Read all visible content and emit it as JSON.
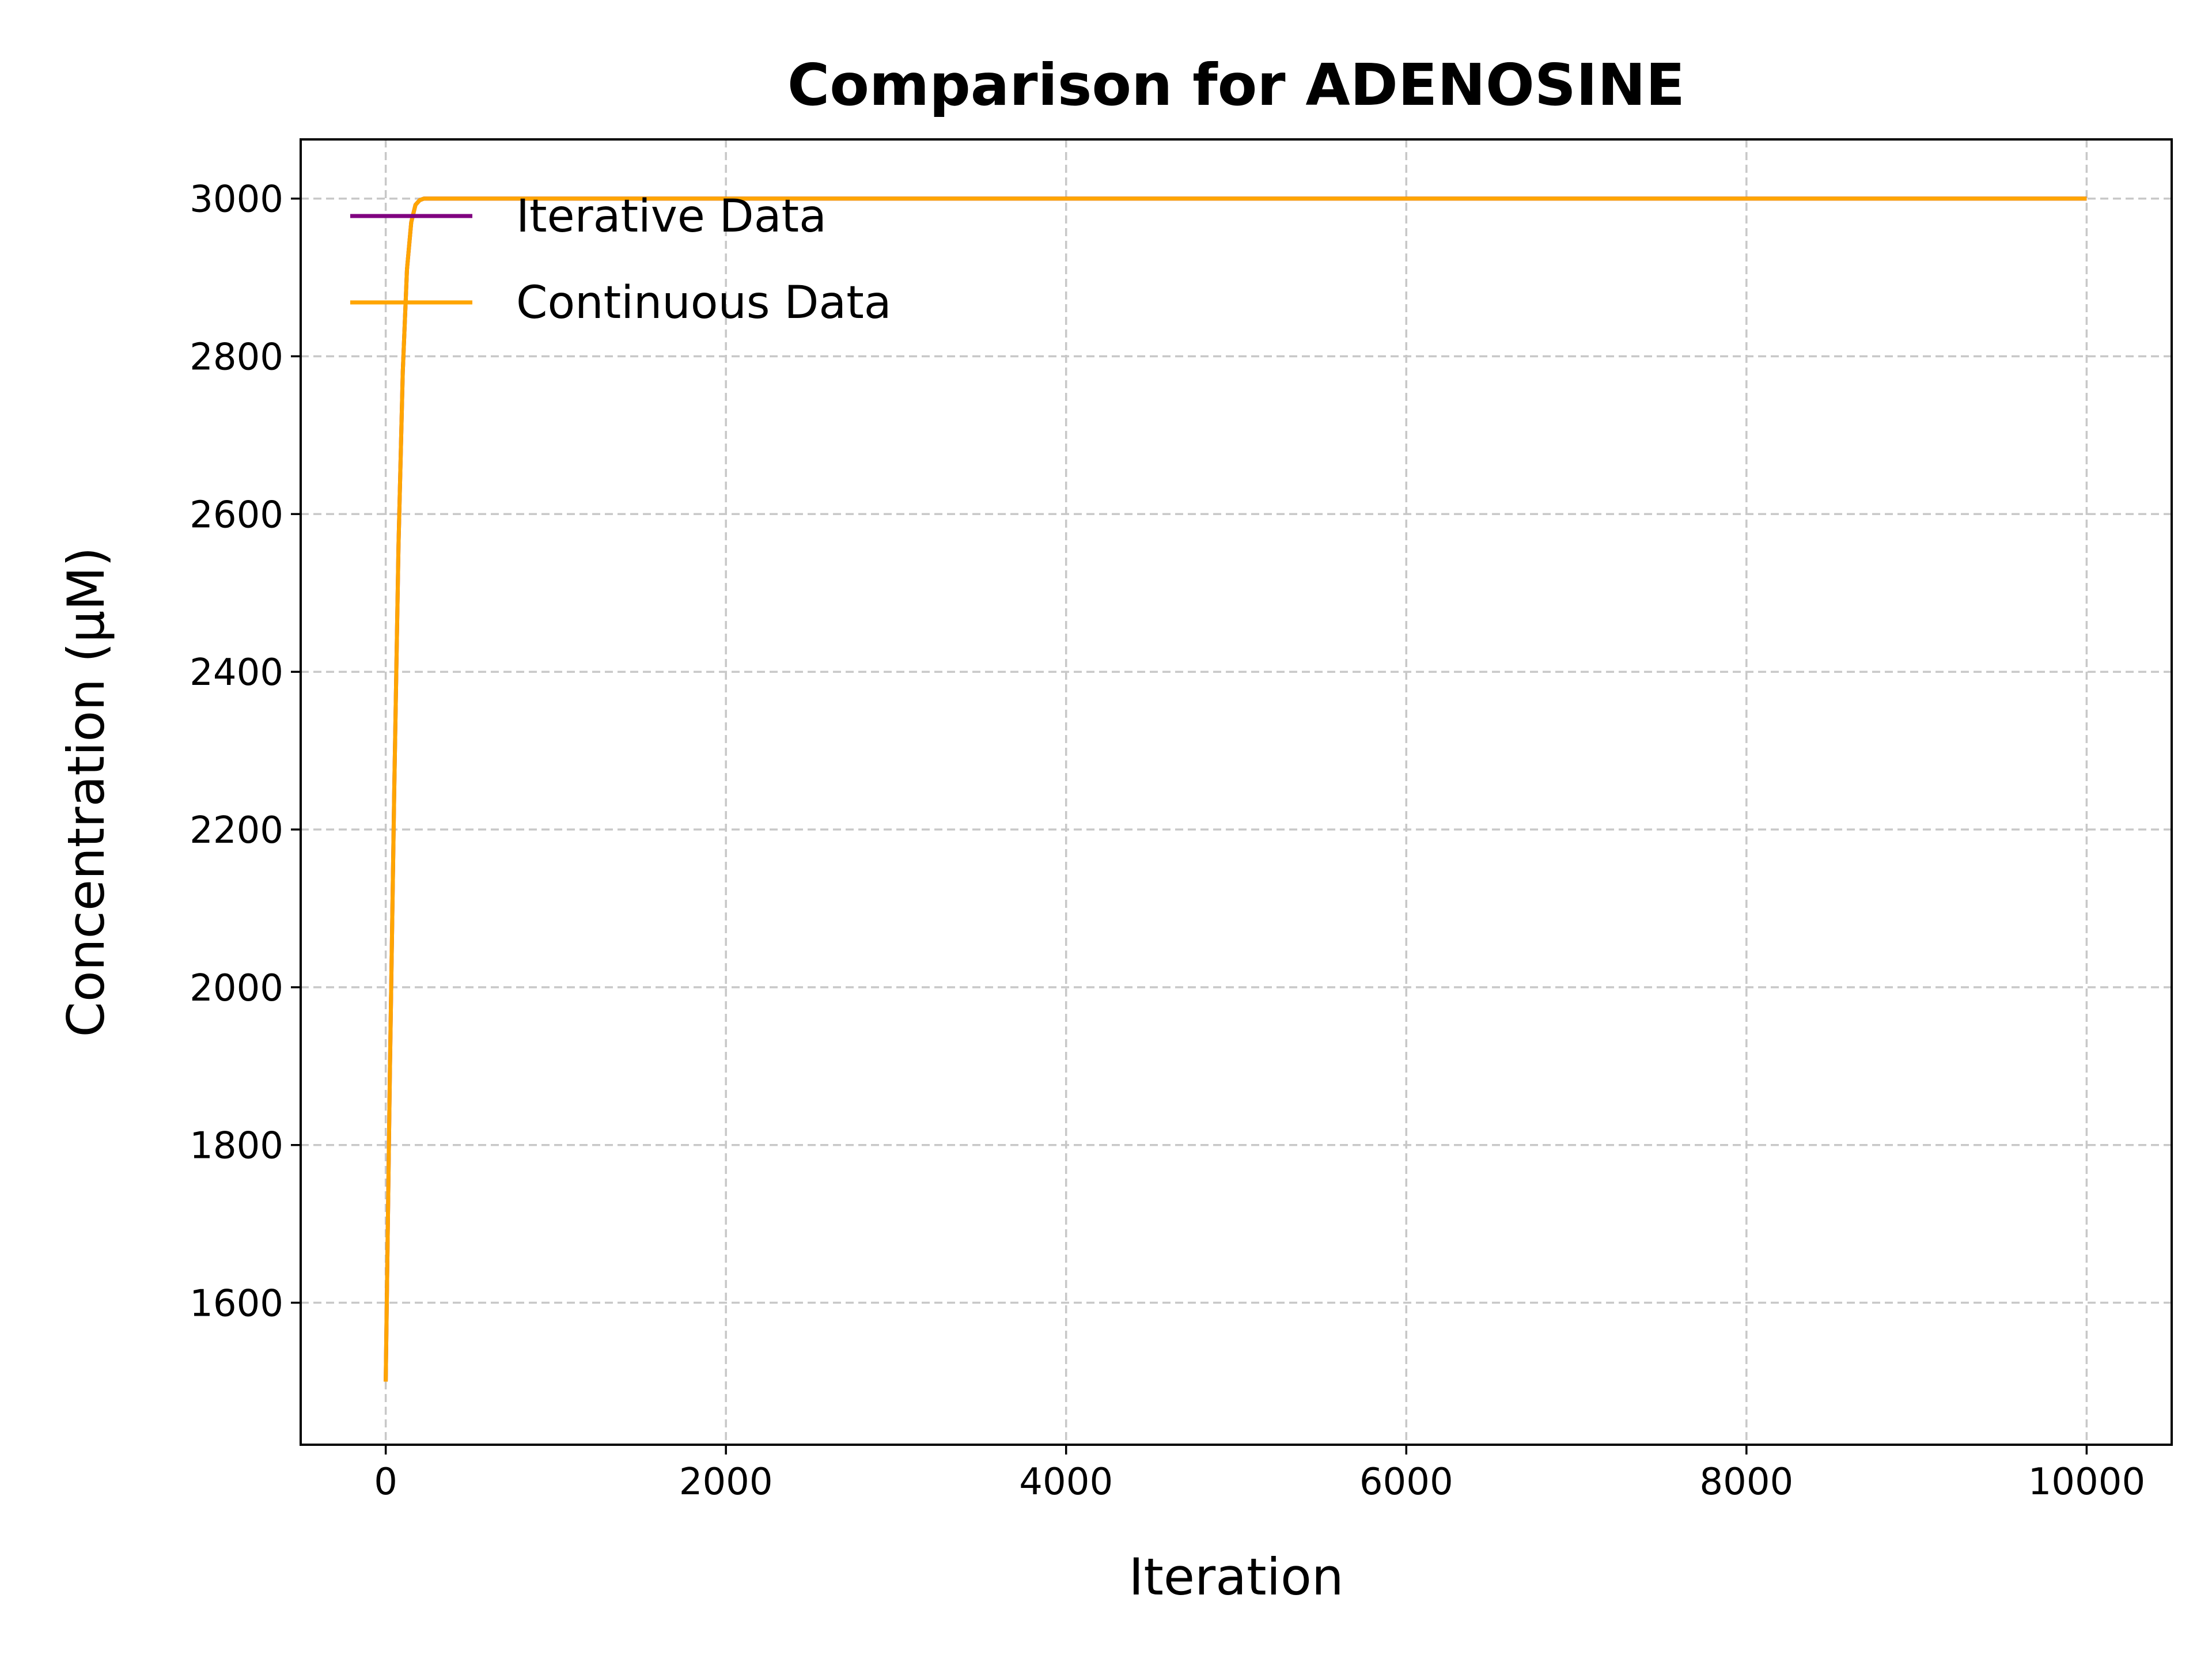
{
  "chart_data": {
    "type": "line",
    "title": "Comparison for ADENOSINE",
    "xlabel": "Iteration",
    "ylabel": "Concentration (μM)",
    "xlim": [
      -500,
      10500
    ],
    "ylim": [
      1420,
      3075
    ],
    "x_ticks": [
      0,
      2000,
      4000,
      6000,
      8000,
      10000
    ],
    "y_ticks": [
      1600,
      1800,
      2000,
      2200,
      2400,
      2600,
      2800,
      3000
    ],
    "grid": true,
    "legend_position": "top-left",
    "series": [
      {
        "name": "Iterative Data",
        "color": "#800080",
        "x": [
          0,
          25,
          50,
          75,
          100,
          125,
          150,
          175,
          200,
          225,
          250,
          10000
        ],
        "y": [
          1500,
          1900,
          2250,
          2560,
          2780,
          2910,
          2970,
          2992,
          2998,
          3000,
          3000,
          3000
        ]
      },
      {
        "name": "Continuous Data",
        "color": "#FFA500",
        "x": [
          0,
          25,
          50,
          75,
          100,
          125,
          150,
          175,
          200,
          225,
          250,
          10000
        ],
        "y": [
          1500,
          1900,
          2250,
          2560,
          2780,
          2910,
          2970,
          2992,
          2998,
          3000,
          3000,
          3000
        ]
      }
    ]
  }
}
